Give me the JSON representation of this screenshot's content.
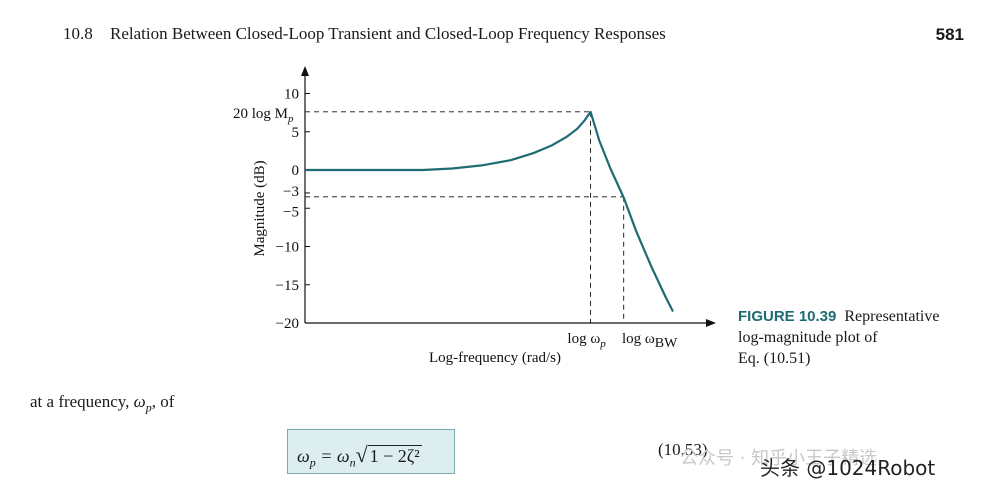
{
  "header": {
    "section": "10.8",
    "title": "Relation Between Closed-Loop Transient and Closed-Loop Frequency Responses",
    "page_number": "581"
  },
  "figure": {
    "label": "FIGURE 10.39",
    "caption_lines": [
      "Representative",
      "log-magnitude plot of",
      "Eq. (10.51)"
    ]
  },
  "chart_data": {
    "type": "line",
    "title": "",
    "xlabel": "Log-frequency (rad/s)",
    "ylabel": "Magnitude (dB)",
    "ylim": [
      -20,
      10
    ],
    "y_ticks": [
      10,
      5,
      0,
      -3,
      -5,
      -10,
      -15,
      -20
    ],
    "y_tick_labels": [
      "10",
      "5",
      "0",
      "−3",
      "−5",
      "−10",
      "−15",
      "−20"
    ],
    "x_markers": [
      {
        "label_main": "log ω",
        "label_sub": "p",
        "x": 0.776
      },
      {
        "label_main": "log ω",
        "label_sub": "BW",
        "x": 0.866
      }
    ],
    "peak_label": {
      "main": "20 log M",
      "sub": "p"
    },
    "x_range": [
      0,
      1
    ],
    "series": [
      {
        "color": "#1e6b74",
        "x": [
          0.0,
          0.32,
          0.4,
          0.48,
          0.56,
          0.62,
          0.67,
          0.71,
          0.74,
          0.76,
          0.776,
          0.8,
          0.83,
          0.866,
          0.9,
          0.94,
          0.98,
          1.0
        ],
        "y": [
          0.0,
          0.0,
          0.2,
          0.6,
          1.3,
          2.2,
          3.2,
          4.3,
          5.4,
          6.5,
          7.6,
          3.8,
          0.2,
          -3.6,
          -8.0,
          -12.5,
          -16.6,
          -18.5
        ]
      }
    ]
  },
  "body": {
    "text_prefix": "at a frequency, ",
    "text_var": "ω",
    "text_sub": "p",
    "text_suffix": ", of"
  },
  "equation": {
    "lhs": "ω",
    "lhs_sub": "p",
    "eq": " = ω",
    "rhs_sub": "n",
    "radical": "√",
    "radicand": "1 − 2ζ²",
    "number": "(10.53)"
  },
  "watermark": {
    "faint": "公众号 · 知乎小王子精选",
    "strong": "头条 @1024Robot"
  }
}
